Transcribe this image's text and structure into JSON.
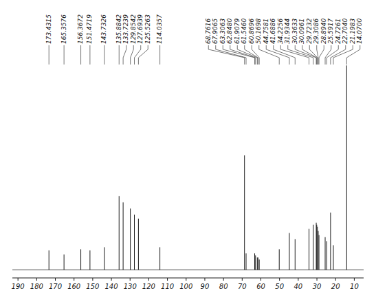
{
  "chart_data": {
    "type": "stem",
    "color": "#1a1a1a",
    "tick_labels": "x",
    "xlim": [
      193,
      5
    ],
    "ylim": [
      -0.04,
      1.28
    ],
    "xticks": [
      190,
      180,
      170,
      160,
      150,
      140,
      130,
      120,
      110,
      100,
      90,
      80,
      70,
      60,
      50,
      40,
      30,
      20,
      10
    ],
    "x": [
      173.4315,
      165.3576,
      156.3672,
      151.4719,
      143.7326,
      135.8842,
      133.7239,
      129.8542,
      127.6939,
      125.5263,
      114.0357,
      68.7616,
      67.9065,
      63.3063,
      62.848,
      61.9079,
      61.546,
      60.8696,
      50.1698,
      44.7581,
      41.6886,
      34.2256,
      31.9344,
      30.3633,
      30.0961,
      29.7232,
      29.3086,
      28.894,
      25.5917,
      24.7261,
      22.704,
      21.1983,
      14.07
    ],
    "values": [
      0.095,
      0.075,
      0.1,
      0.095,
      0.11,
      0.36,
      0.33,
      0.3,
      0.27,
      0.25,
      0.11,
      0.56,
      0.08,
      0.08,
      0.07,
      0.06,
      0.06,
      0.05,
      0.1,
      0.18,
      0.15,
      0.2,
      0.22,
      0.23,
      0.22,
      0.21,
      0.19,
      0.17,
      0.16,
      0.14,
      0.28,
      0.12,
      1.0
    ],
    "annotations": [
      {
        "x": 173.4315,
        "text": "173.4315"
      },
      {
        "x": 165.3576,
        "text": "165.3576"
      },
      {
        "x": 156.3672,
        "text": "156.3672"
      },
      {
        "x": 151.4719,
        "text": "151.4719"
      },
      {
        "x": 143.7326,
        "text": "143.7326"
      },
      {
        "x": 135.8842,
        "text": "135.8842"
      },
      {
        "x": 133.7239,
        "text": "133.7239"
      },
      {
        "x": 129.8542,
        "text": "129.8542"
      },
      {
        "x": 127.6939,
        "text": "127.6939"
      },
      {
        "x": 125.5263,
        "text": "125.5263"
      },
      {
        "x": 114.0357,
        "text": "114.0357"
      },
      {
        "x": 68.7616,
        "text": "68.7616"
      },
      {
        "x": 67.9065,
        "text": "67.9065"
      },
      {
        "x": 63.3063,
        "text": "63.3063"
      },
      {
        "x": 62.848,
        "text": "62.8480"
      },
      {
        "x": 61.9079,
        "text": "61.9079"
      },
      {
        "x": 61.546,
        "text": "61.5460"
      },
      {
        "x": 60.8696,
        "text": "60.8696"
      },
      {
        "x": 50.1698,
        "text": "50.1698"
      },
      {
        "x": 44.7581,
        "text": "44.7581"
      },
      {
        "x": 41.6886,
        "text": "41.6886"
      },
      {
        "x": 34.2256,
        "text": "34.2256"
      },
      {
        "x": 31.9344,
        "text": "31.9344"
      },
      {
        "x": 30.3633,
        "text": "30.3633"
      },
      {
        "x": 30.0961,
        "text": "30.0961"
      },
      {
        "x": 29.7232,
        "text": "29.7232"
      },
      {
        "x": 29.3086,
        "text": "29.3086"
      },
      {
        "x": 28.894,
        "text": "28.8940"
      },
      {
        "x": 25.5917,
        "text": "25.5917"
      },
      {
        "x": 24.7261,
        "text": "24.7261"
      },
      {
        "x": 22.704,
        "text": "22.7040"
      },
      {
        "x": 21.1983,
        "text": "21.1983"
      },
      {
        "x": 14.07,
        "text": "14.0700"
      }
    ]
  }
}
